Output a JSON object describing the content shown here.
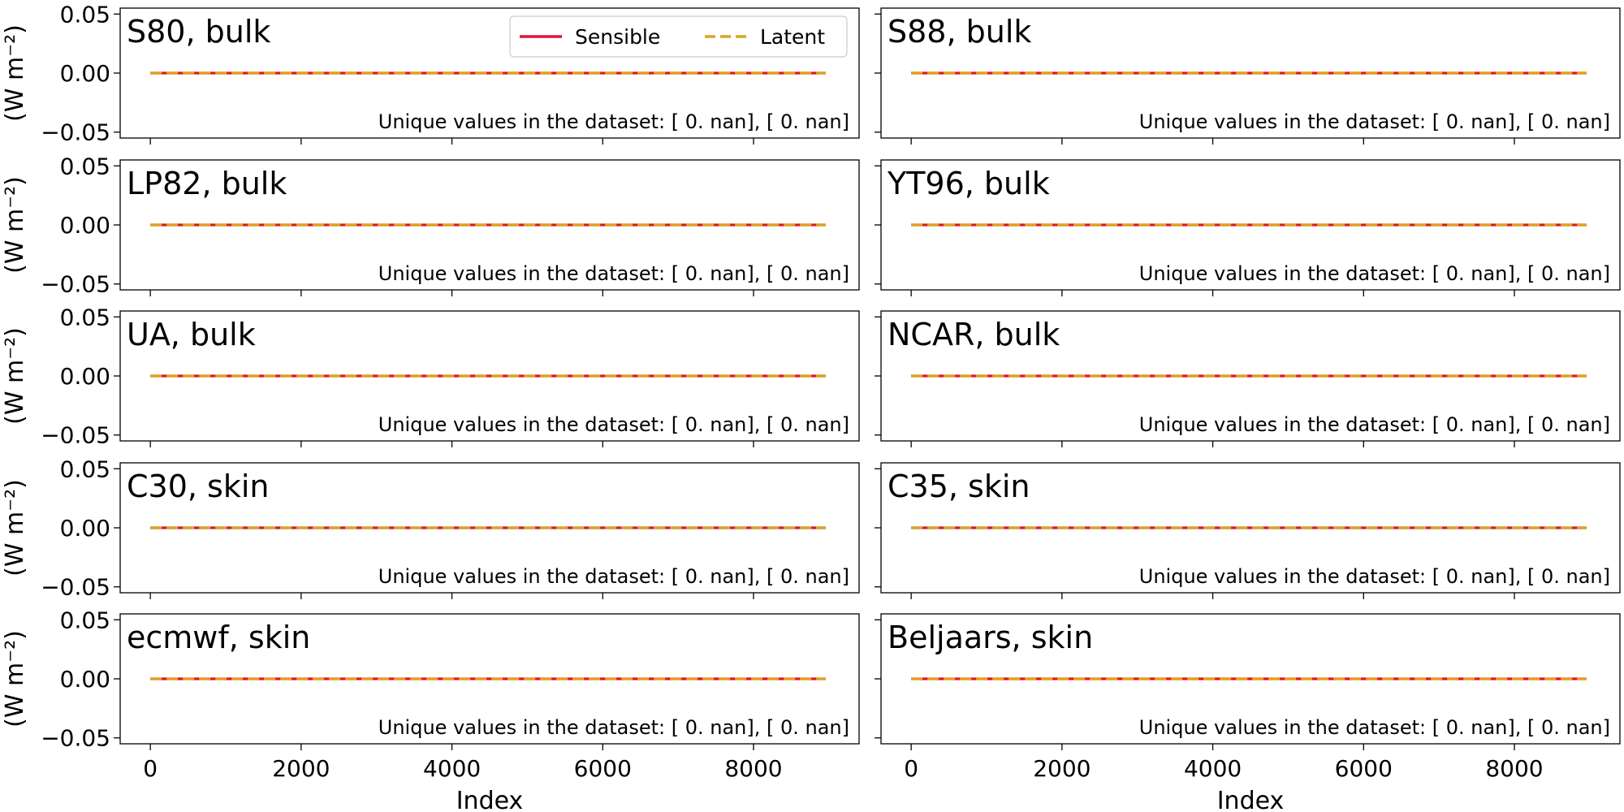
{
  "chart_data": {
    "type": "line",
    "layout": {
      "rows": 5,
      "cols": 2,
      "sharex": true,
      "sharey": true
    },
    "xlabel": "Index",
    "ylabel": "(W m⁻²)",
    "xlim": [
      -400,
      9400
    ],
    "ylim": [
      -0.055,
      0.055
    ],
    "xticks": [
      0,
      2000,
      4000,
      6000,
      8000
    ],
    "xtick_labels": [
      "0",
      "2000",
      "4000",
      "6000",
      "8000"
    ],
    "yticks": [
      0.05,
      0.0,
      -0.05
    ],
    "ytick_labels": [
      "0.05",
      "0.00",
      "−0.05"
    ],
    "grid": false,
    "legend": {
      "placement": "top-right of first panel",
      "entries": [
        {
          "name": "Sensible",
          "color": "#dc143c",
          "style": "solid"
        },
        {
          "name": "Latent",
          "color": "#daa520",
          "style": "dashed"
        }
      ]
    },
    "x_range": [
      0,
      8958
    ],
    "panels": [
      {
        "title": "S80, bulk",
        "note": "Unique values in the dataset: [ 0. nan], [ 0. nan]",
        "series": [
          {
            "name": "Sensible",
            "value": 0.0
          },
          {
            "name": "Latent",
            "value": 0.0
          }
        ]
      },
      {
        "title": "S88, bulk",
        "note": "Unique values in the dataset: [ 0. nan], [ 0. nan]",
        "series": [
          {
            "name": "Sensible",
            "value": 0.0
          },
          {
            "name": "Latent",
            "value": 0.0
          }
        ]
      },
      {
        "title": "LP82, bulk",
        "note": "Unique values in the dataset: [ 0. nan], [ 0. nan]",
        "series": [
          {
            "name": "Sensible",
            "value": 0.0
          },
          {
            "name": "Latent",
            "value": 0.0
          }
        ]
      },
      {
        "title": "YT96, bulk",
        "note": "Unique values in the dataset: [ 0. nan], [ 0. nan]",
        "series": [
          {
            "name": "Sensible",
            "value": 0.0
          },
          {
            "name": "Latent",
            "value": 0.0
          }
        ]
      },
      {
        "title": "UA, bulk",
        "note": "Unique values in the dataset: [ 0. nan], [ 0. nan]",
        "series": [
          {
            "name": "Sensible",
            "value": 0.0
          },
          {
            "name": "Latent",
            "value": 0.0
          }
        ]
      },
      {
        "title": "NCAR, bulk",
        "note": "Unique values in the dataset: [ 0. nan], [ 0. nan]",
        "series": [
          {
            "name": "Sensible",
            "value": 0.0
          },
          {
            "name": "Latent",
            "value": 0.0
          }
        ]
      },
      {
        "title": "C30, skin",
        "note": "Unique values in the dataset: [ 0. nan], [ 0. nan]",
        "series": [
          {
            "name": "Sensible",
            "value": 0.0
          },
          {
            "name": "Latent",
            "value": 0.0
          }
        ]
      },
      {
        "title": "C35, skin",
        "note": "Unique values in the dataset: [ 0. nan], [ 0. nan]",
        "series": [
          {
            "name": "Sensible",
            "value": 0.0
          },
          {
            "name": "Latent",
            "value": 0.0
          }
        ]
      },
      {
        "title": "ecmwf, skin",
        "note": "Unique values in the dataset: [ 0. nan], [ 0. nan]",
        "series": [
          {
            "name": "Sensible",
            "value": 0.0
          },
          {
            "name": "Latent",
            "value": 0.0
          }
        ]
      },
      {
        "title": "Beljaars, skin",
        "note": "Unique values in the dataset: [ 0. nan], [ 0. nan]",
        "series": [
          {
            "name": "Sensible",
            "value": 0.0
          },
          {
            "name": "Latent",
            "value": 0.0
          }
        ]
      }
    ]
  }
}
